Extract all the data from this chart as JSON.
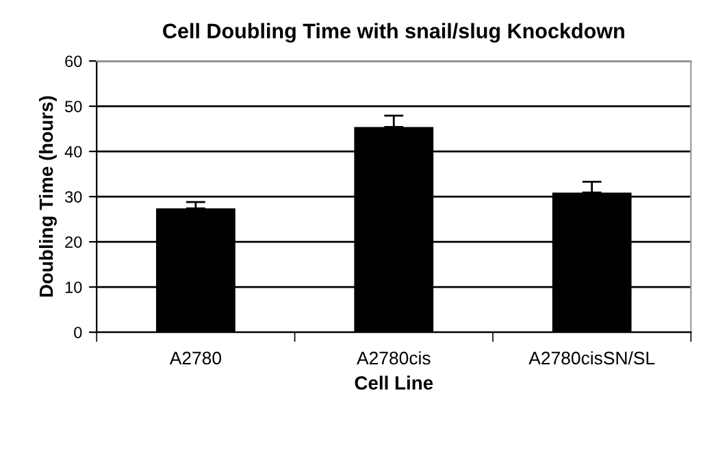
{
  "chart_data": {
    "type": "bar",
    "title": "Cell Doubling Time with snail/slug Knockdown",
    "xlabel": "Cell Line",
    "ylabel": "Doubling Time (hours)",
    "categories": [
      "A2780",
      "A2780cis",
      "A2780cisSN/SL"
    ],
    "values": [
      27.4,
      45.4,
      30.9
    ],
    "errors": [
      [
        27.4,
        28.8
      ],
      [
        45.4,
        47.9
      ],
      [
        30.9,
        33.3
      ]
    ],
    "color": "#000000",
    "ylim": [
      0,
      60
    ],
    "yticks": [
      0,
      10,
      20,
      30,
      40,
      50,
      60
    ],
    "grid": "y",
    "legend": false
  }
}
